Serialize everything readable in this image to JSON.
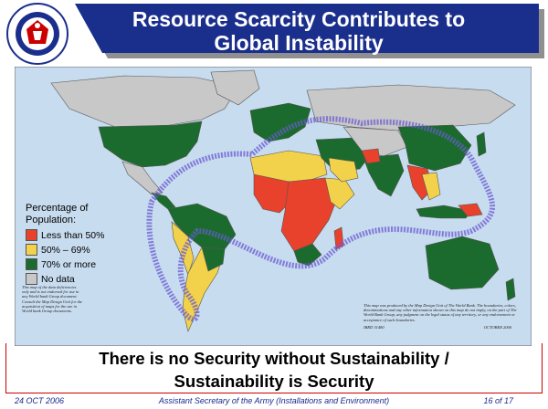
{
  "header": {
    "title_line1": "Resource Scarcity Contributes to",
    "title_line2": "Global Instability",
    "seal_text": "OFFICE OF THE ASSISTANT SECRETARY OF THE ARMY"
  },
  "legend": {
    "title_line1": "Percentage of",
    "title_line2": "Population:",
    "items": [
      {
        "label": "Less than 50%",
        "color": "#e8412c"
      },
      {
        "label": "50% – 69%",
        "color": "#f2d24a"
      },
      {
        "label": "70% or more",
        "color": "#1b6b2e"
      },
      {
        "label": "No data",
        "color": "#c8c8c8"
      }
    ]
  },
  "colors": {
    "ocean": "#c8dcef",
    "banner": "#1a2e8c",
    "banner_shadow": "#8f8f8f",
    "conflict_band": "#6b5bd1",
    "accent_red": "#cc0000"
  },
  "fine_print": {
    "left": "This map of the data deficiencies only and is not endorsed for use in any World bank Group document. Consult the Map Design Unit for the acquisition of maps for the use in World bank Group documents.",
    "right": "This map was produced by the Map Design Unit of The World Bank. The boundaries, colors, denominations and any other information shown on this map do not imply, on the part of The World Bank Group, any judgment on the legal status of any territory, or any endorsement or acceptance of such boundaries.",
    "right_code": "IBRD 31480",
    "right_date": "OCTOBER 2000"
  },
  "slogan": {
    "line1": "There is no Security without Sustainability /",
    "line2": "Sustainability is Security"
  },
  "footer": {
    "date": "24 OCT 2006",
    "office": "Assistant Secretary of the Army (Installations and Environment)",
    "page": "16 of 17"
  }
}
